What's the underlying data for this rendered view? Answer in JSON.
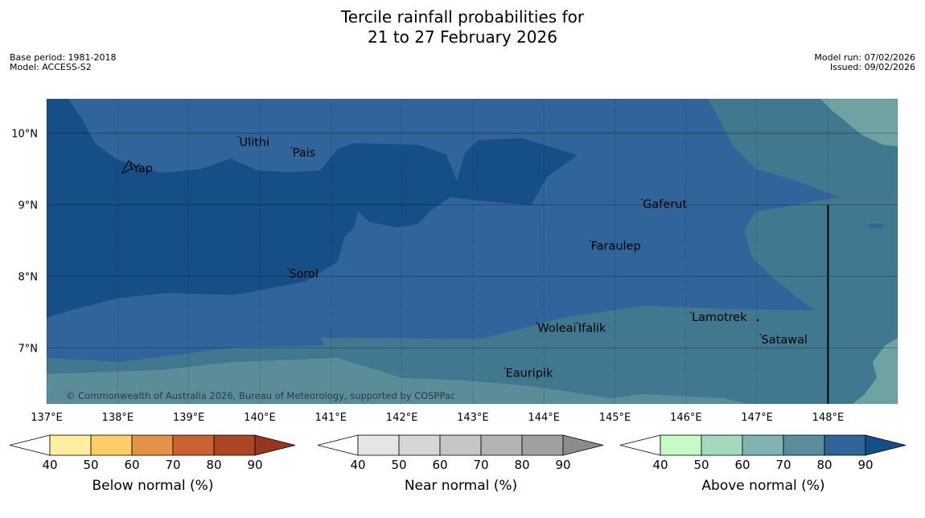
{
  "title": {
    "line1": "Tercile rainfall probabilities for",
    "line2": "21 to 27 February 2026"
  },
  "info_left": {
    "base_period": "Base period: 1981-2018",
    "model": "Model: ACCESS-S2"
  },
  "info_right": {
    "model_run": "Model run: 07/02/2026",
    "issued": "Issued: 09/02/2026"
  },
  "map": {
    "extent": {
      "lon": [
        137.0,
        148.98
      ],
      "lat": [
        6.22,
        10.48
      ]
    },
    "lon_ticks": [
      {
        "value": 137,
        "label": "137°E"
      },
      {
        "value": 138,
        "label": "138°E"
      },
      {
        "value": 139,
        "label": "139°E"
      },
      {
        "value": 140,
        "label": "140°E"
      },
      {
        "value": 141,
        "label": "141°E"
      },
      {
        "value": 142,
        "label": "142°E"
      },
      {
        "value": 143,
        "label": "143°E"
      },
      {
        "value": 144,
        "label": "144°E"
      },
      {
        "value": 145,
        "label": "145°E"
      },
      {
        "value": 146,
        "label": "146°E"
      },
      {
        "value": 147,
        "label": "147°E"
      },
      {
        "value": 148,
        "label": "148°E"
      }
    ],
    "lat_ticks": [
      {
        "value": 10,
        "label": "10°N"
      },
      {
        "value": 9,
        "label": "9°N"
      },
      {
        "value": 8,
        "label": "8°N"
      },
      {
        "value": 7,
        "label": "7°N"
      }
    ],
    "places": [
      {
        "name": "Yap",
        "lon": 138.2,
        "lat": 9.5
      },
      {
        "name": "Ulithi",
        "lon": 139.7,
        "lat": 9.87
      },
      {
        "name": "Pais",
        "lon": 140.45,
        "lat": 9.72
      },
      {
        "name": "Gaferut",
        "lon": 145.38,
        "lat": 9.0
      },
      {
        "name": "Faraulep",
        "lon": 144.65,
        "lat": 8.42
      },
      {
        "name": "Sorol",
        "lon": 140.4,
        "lat": 8.03
      },
      {
        "name": "Lamotrek",
        "lon": 146.07,
        "lat": 7.42
      },
      {
        "name": "Woleai",
        "lon": 143.9,
        "lat": 7.27
      },
      {
        "name": "Ifalik",
        "lon": 144.47,
        "lat": 7.27
      },
      {
        "name": "Satawal",
        "lon": 147.05,
        "lat": 7.11
      },
      {
        "name": "Eauripik",
        "lon": 143.45,
        "lat": 6.64
      }
    ],
    "boundary_line": {
      "lon": 148.0,
      "lat_from": 9.0,
      "lat_to": 6.22
    },
    "copyright": "© Commonwealth of Australia 2026, Bureau of Meteorology, supported by COSPPac"
  },
  "colorbars": [
    {
      "label": "Below normal (%)",
      "colors": [
        "#ffeea0",
        "#fece66",
        "#e39347",
        "#cc6133",
        "#aa4526",
        "#963620"
      ],
      "ticks": [
        "40",
        "50",
        "60",
        "70",
        "80",
        "90"
      ]
    },
    {
      "label": "Near normal (%)",
      "colors": [
        "#e5e5e5",
        "#d6d6d6",
        "#c6c6c6",
        "#b4b4b4",
        "#a0a0a0",
        "#8c8c8c"
      ],
      "ticks": [
        "40",
        "50",
        "60",
        "70",
        "80",
        "90"
      ]
    },
    {
      "label": "Above normal (%)",
      "colors": [
        "#c8fac8",
        "#a3d9bd",
        "#80b4b0",
        "#5a8e9c",
        "#30649a",
        "#164f88"
      ],
      "ticks": [
        "40",
        "50",
        "60",
        "70",
        "80",
        "90"
      ]
    }
  ]
}
